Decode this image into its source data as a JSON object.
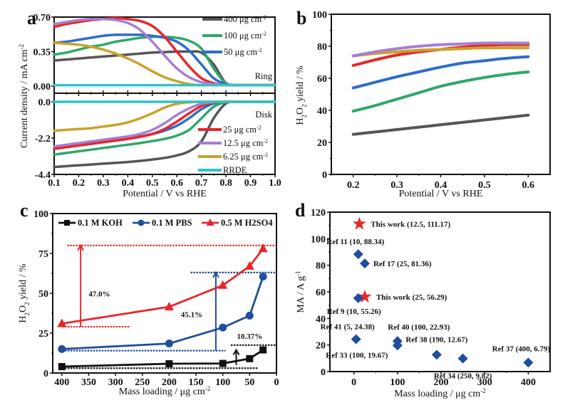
{
  "panels": {
    "a": "a",
    "b": "b",
    "c": "c",
    "d": "d"
  },
  "chart_data": [
    {
      "id": "a",
      "type": "line",
      "title": "",
      "xlabel": "Potential / V vs RHE",
      "ylabel": "Current density / mA cm",
      "ylabel_sup": "-2",
      "xlim": [
        0.1,
        1.0
      ],
      "xticks": [
        "0.1",
        "0.2",
        "0.3",
        "0.4",
        "0.5",
        "0.6",
        "0.7",
        "0.8",
        "0.9",
        "1.0"
      ],
      "ring": {
        "label": "Ring",
        "ylim": [
          0,
          0.7
        ],
        "yticks": [
          "0.00",
          "0.35",
          "0.70"
        ],
        "x": [
          0.1,
          0.15,
          0.2,
          0.25,
          0.3,
          0.35,
          0.4,
          0.45,
          0.5,
          0.55,
          0.6,
          0.65,
          0.7,
          0.75,
          0.8,
          0.85,
          0.9,
          0.95,
          1.0
        ],
        "series": [
          {
            "name": "400 μg cm-2",
            "color": "#555555",
            "values": [
              0.26,
              0.27,
              0.28,
              0.29,
              0.3,
              0.31,
              0.32,
              0.33,
              0.34,
              0.345,
              0.35,
              0.35,
              0.34,
              0.22,
              0.03,
              0.01,
              0.01,
              0.01,
              0.01
            ]
          },
          {
            "name": "100 μg cm-2",
            "color": "#2fa86a",
            "values": [
              0.32,
              0.34,
              0.37,
              0.4,
              0.42,
              0.45,
              0.47,
              0.49,
              0.5,
              0.5,
              0.49,
              0.46,
              0.38,
              0.18,
              0.03,
              0.01,
              0.01,
              0.01,
              0.01
            ]
          },
          {
            "name": "50 μg cm-2",
            "color": "#2f6cc9",
            "values": [
              0.44,
              0.45,
              0.47,
              0.49,
              0.51,
              0.52,
              0.52,
              0.52,
              0.51,
              0.49,
              0.45,
              0.36,
              0.22,
              0.08,
              0.02,
              0.01,
              0.01,
              0.01,
              0.01
            ]
          },
          {
            "name": "25 μg cm-2",
            "color": "#e8262a",
            "values": [
              0.6,
              0.63,
              0.65,
              0.67,
              0.68,
              0.69,
              0.68,
              0.66,
              0.61,
              0.5,
              0.35,
              0.2,
              0.08,
              0.03,
              0.01,
              0.01,
              0.01,
              0.01,
              0.01
            ]
          },
          {
            "name": "12.5 μg cm-2",
            "color": "#a77fd0",
            "values": [
              0.63,
              0.65,
              0.67,
              0.68,
              0.68,
              0.67,
              0.64,
              0.57,
              0.45,
              0.31,
              0.18,
              0.09,
              0.04,
              0.02,
              0.01,
              0.01,
              0.01,
              0.01,
              0.01
            ]
          },
          {
            "name": "6.25 μg cm-2",
            "color": "#c9a22a",
            "values": [
              0.44,
              0.43,
              0.42,
              0.4,
              0.37,
              0.33,
              0.28,
              0.22,
              0.15,
              0.09,
              0.05,
              0.02,
              0.01,
              0.01,
              0.01,
              0.01,
              0.01,
              0.01,
              0.01
            ]
          },
          {
            "name": "RRDE",
            "color": "#2fc4c8",
            "values": [
              0.01,
              0.01,
              0.01,
              0.01,
              0.01,
              0.01,
              0.01,
              0.01,
              0.01,
              0.01,
              0.01,
              0.01,
              0.01,
              0.01,
              0.01,
              0.01,
              0.01,
              0.01,
              0.01
            ]
          }
        ]
      },
      "disk": {
        "label": "Disk",
        "ylim": [
          -4.4,
          0
        ],
        "yticks": [
          "0.0",
          "-2.2",
          "-4.4"
        ],
        "x": [
          0.1,
          0.15,
          0.2,
          0.25,
          0.3,
          0.35,
          0.4,
          0.45,
          0.5,
          0.55,
          0.6,
          0.65,
          0.7,
          0.75,
          0.8,
          0.85,
          0.9,
          0.95,
          1.0
        ],
        "series": [
          {
            "name": "400 μg cm-2",
            "color": "#555555",
            "values": [
              -3.95,
              -3.9,
              -3.85,
              -3.8,
              -3.75,
              -3.7,
              -3.65,
              -3.58,
              -3.5,
              -3.4,
              -3.25,
              -3.0,
              -2.4,
              -1.0,
              -0.1,
              0,
              0,
              0,
              0
            ]
          },
          {
            "name": "100 μg cm-2",
            "color": "#2fa86a",
            "values": [
              -3.2,
              -3.1,
              -3.0,
              -2.9,
              -2.8,
              -2.7,
              -2.6,
              -2.5,
              -2.38,
              -2.25,
              -2.05,
              -1.7,
              -1.0,
              -0.3,
              -0.02,
              0,
              0,
              0,
              0
            ]
          },
          {
            "name": "50 μg cm-2",
            "color": "#2f6cc9",
            "values": [
              -2.8,
              -2.7,
              -2.6,
              -2.5,
              -2.4,
              -2.3,
              -2.2,
              -2.1,
              -1.95,
              -1.75,
              -1.45,
              -1.0,
              -0.45,
              -0.1,
              0,
              0,
              0,
              0,
              0
            ]
          },
          {
            "name": "25 μg cm-2",
            "color": "#e8262a",
            "values": [
              -2.85,
              -2.75,
              -2.65,
              -2.55,
              -2.45,
              -2.35,
              -2.25,
              -2.12,
              -1.95,
              -1.65,
              -1.2,
              -0.7,
              -0.25,
              -0.05,
              0,
              0,
              0,
              0,
              0
            ]
          },
          {
            "name": "12.5 μg cm-2",
            "color": "#a77fd0",
            "values": [
              -2.7,
              -2.6,
              -2.5,
              -2.4,
              -2.3,
              -2.2,
              -2.1,
              -1.95,
              -1.7,
              -1.3,
              -0.8,
              -0.4,
              -0.12,
              -0.02,
              0,
              0,
              0,
              0,
              0
            ]
          },
          {
            "name": "6.25 μg cm-2",
            "color": "#c9a22a",
            "values": [
              -1.75,
              -1.7,
              -1.65,
              -1.6,
              -1.5,
              -1.4,
              -1.25,
              -1.0,
              -0.7,
              -0.35,
              -0.12,
              -0.03,
              0,
              0,
              0,
              0,
              0,
              0,
              0
            ]
          },
          {
            "name": "RRDE",
            "color": "#2fc4c8",
            "values": [
              0,
              0,
              0,
              0,
              0,
              0,
              0,
              0,
              0,
              0,
              0,
              0,
              0,
              0,
              0,
              0,
              0,
              0,
              0
            ]
          }
        ]
      },
      "legend_top": [
        "400 μg cm-2",
        "100 μg cm-2",
        "50 μg cm-2"
      ],
      "legend_bottom": [
        "25 μg cm-2",
        "12.5 μg cm-2",
        "6.25 μg cm-2",
        "RRDE"
      ]
    },
    {
      "id": "b",
      "type": "line",
      "xlabel": "Potential / V vs RHE",
      "ylabel": "H2O2 yield / %",
      "xlim": [
        0.15,
        0.65
      ],
      "ylim": [
        0,
        100
      ],
      "xticks": [
        "0.2",
        "0.3",
        "0.4",
        "0.5",
        "0.6"
      ],
      "yticks": [
        "0",
        "20",
        "40",
        "60",
        "80",
        "100"
      ],
      "x": [
        0.2,
        0.25,
        0.3,
        0.35,
        0.4,
        0.45,
        0.5,
        0.55,
        0.6
      ],
      "series": [
        {
          "name": "400 μg cm-2",
          "color": "#555555",
          "values": [
            25,
            26.5,
            28,
            29.5,
            31,
            32.5,
            34,
            35.5,
            37
          ]
        },
        {
          "name": "100 μg cm-2",
          "color": "#2fa86a",
          "values": [
            39.5,
            43,
            47,
            51,
            55,
            58,
            60.5,
            62.5,
            64
          ]
        },
        {
          "name": "50 μg cm-2",
          "color": "#2f6cc9",
          "values": [
            54,
            57.5,
            61,
            64,
            67,
            69.5,
            71,
            72.5,
            73.5
          ]
        },
        {
          "name": "25 μg cm-2",
          "color": "#e8262a",
          "values": [
            68,
            71.5,
            74.5,
            76.5,
            78,
            79.5,
            80.5,
            81,
            81
          ]
        },
        {
          "name": "6.25 μg cm-2",
          "color": "#c9a22a",
          "values": [
            74,
            75.5,
            76.5,
            77.5,
            78,
            78.5,
            79,
            79,
            79
          ]
        },
        {
          "name": "12.5 μg cm-2",
          "color": "#a77fd0",
          "values": [
            74,
            76.5,
            78.5,
            80,
            81,
            81.5,
            82,
            82,
            82
          ]
        }
      ]
    },
    {
      "id": "c",
      "type": "line",
      "xlabel": "Mass loading / μg cm",
      "xlabel_sup": "-2",
      "ylabel": "H2O2 yield / %",
      "xlim": [
        417,
        0
      ],
      "ylim": [
        0,
        100
      ],
      "xticks": [
        "400",
        "350",
        "300",
        "250",
        "200",
        "150",
        "100",
        "50",
        "0"
      ],
      "yticks": [
        "0",
        "25",
        "50",
        "75",
        "100"
      ],
      "x": [
        400,
        200,
        100,
        50,
        25
      ],
      "series": [
        {
          "name": "0.1 M KOH",
          "color": "#111111",
          "marker": "square",
          "values": [
            4,
            5.8,
            6,
            9,
            14.5
          ]
        },
        {
          "name": "0.1 M PBS",
          "color": "#1f4e9c",
          "marker": "circle",
          "values": [
            15,
            18.5,
            28.5,
            36,
            60.5
          ]
        },
        {
          "name": "0.5 M H2SO4",
          "color": "#e8262a",
          "marker": "triangle",
          "values": [
            31,
            41.5,
            55,
            67,
            78
          ]
        }
      ],
      "annotations": [
        {
          "text": "47.0%",
          "color": "#e8262a",
          "arrow_x": 365,
          "from": 29,
          "to": 80
        },
        {
          "text": "45.1%",
          "color": "#1f4e9c",
          "arrow_x": 113,
          "from": 14,
          "to": 63
        },
        {
          "text": "10.37%",
          "color": "#111111",
          "arrow_x": 75,
          "from": 5,
          "to": 14.5
        }
      ],
      "legend": "top"
    },
    {
      "id": "d",
      "type": "scatter",
      "xlabel": "Mass loading / μg cm",
      "xlabel_sup": "-2",
      "ylabel": "MA / A g",
      "ylabel_sup": "-1",
      "xlim": [
        -55,
        450
      ],
      "ylim": [
        0,
        120
      ],
      "xticks": [
        "0",
        "100",
        "200",
        "300",
        "400"
      ],
      "yticks": [
        "0",
        "20",
        "40",
        "60",
        "80",
        "100",
        "120"
      ],
      "points": [
        {
          "label": "This work (12.5, 111.17)",
          "x": 12.5,
          "y": 111.17,
          "marker": "star",
          "color": "#e8262a"
        },
        {
          "label": "This work (25, 56.29)",
          "x": 25,
          "y": 56.29,
          "marker": "star",
          "color": "#e8262a"
        },
        {
          "label": "Ref 11 (10, 88.34)",
          "x": 10,
          "y": 88.34,
          "marker": "diamond",
          "color": "#1f4e9c"
        },
        {
          "label": "Ref 17 (25, 81.36)",
          "x": 25,
          "y": 81.36,
          "marker": "diamond",
          "color": "#1f4e9c"
        },
        {
          "label": "Ref 9 (10, 55.26)",
          "x": 10,
          "y": 55.26,
          "marker": "diamond",
          "color": "#1f4e9c"
        },
        {
          "label": "Ref 41 (5, 24.38)",
          "x": 5,
          "y": 24.38,
          "marker": "diamond",
          "color": "#1f4e9c"
        },
        {
          "label": "Ref 40 (100, 22.93)",
          "x": 100,
          "y": 22.93,
          "marker": "diamond",
          "color": "#1f4e9c"
        },
        {
          "label": "Ref 33 (100, 19.67)",
          "x": 100,
          "y": 19.67,
          "marker": "diamond",
          "color": "#1f4e9c"
        },
        {
          "label": "Ref 38 (190, 12.67)",
          "x": 190,
          "y": 12.67,
          "marker": "diamond",
          "color": "#1f4e9c"
        },
        {
          "label": "Ref 34 (250, 9.82)",
          "x": 250,
          "y": 9.82,
          "marker": "diamond",
          "color": "#1f4e9c"
        },
        {
          "label": "Ref 37 (400, 6.79)",
          "x": 400,
          "y": 6.79,
          "marker": "diamond",
          "color": "#1f4e9c"
        }
      ]
    }
  ]
}
